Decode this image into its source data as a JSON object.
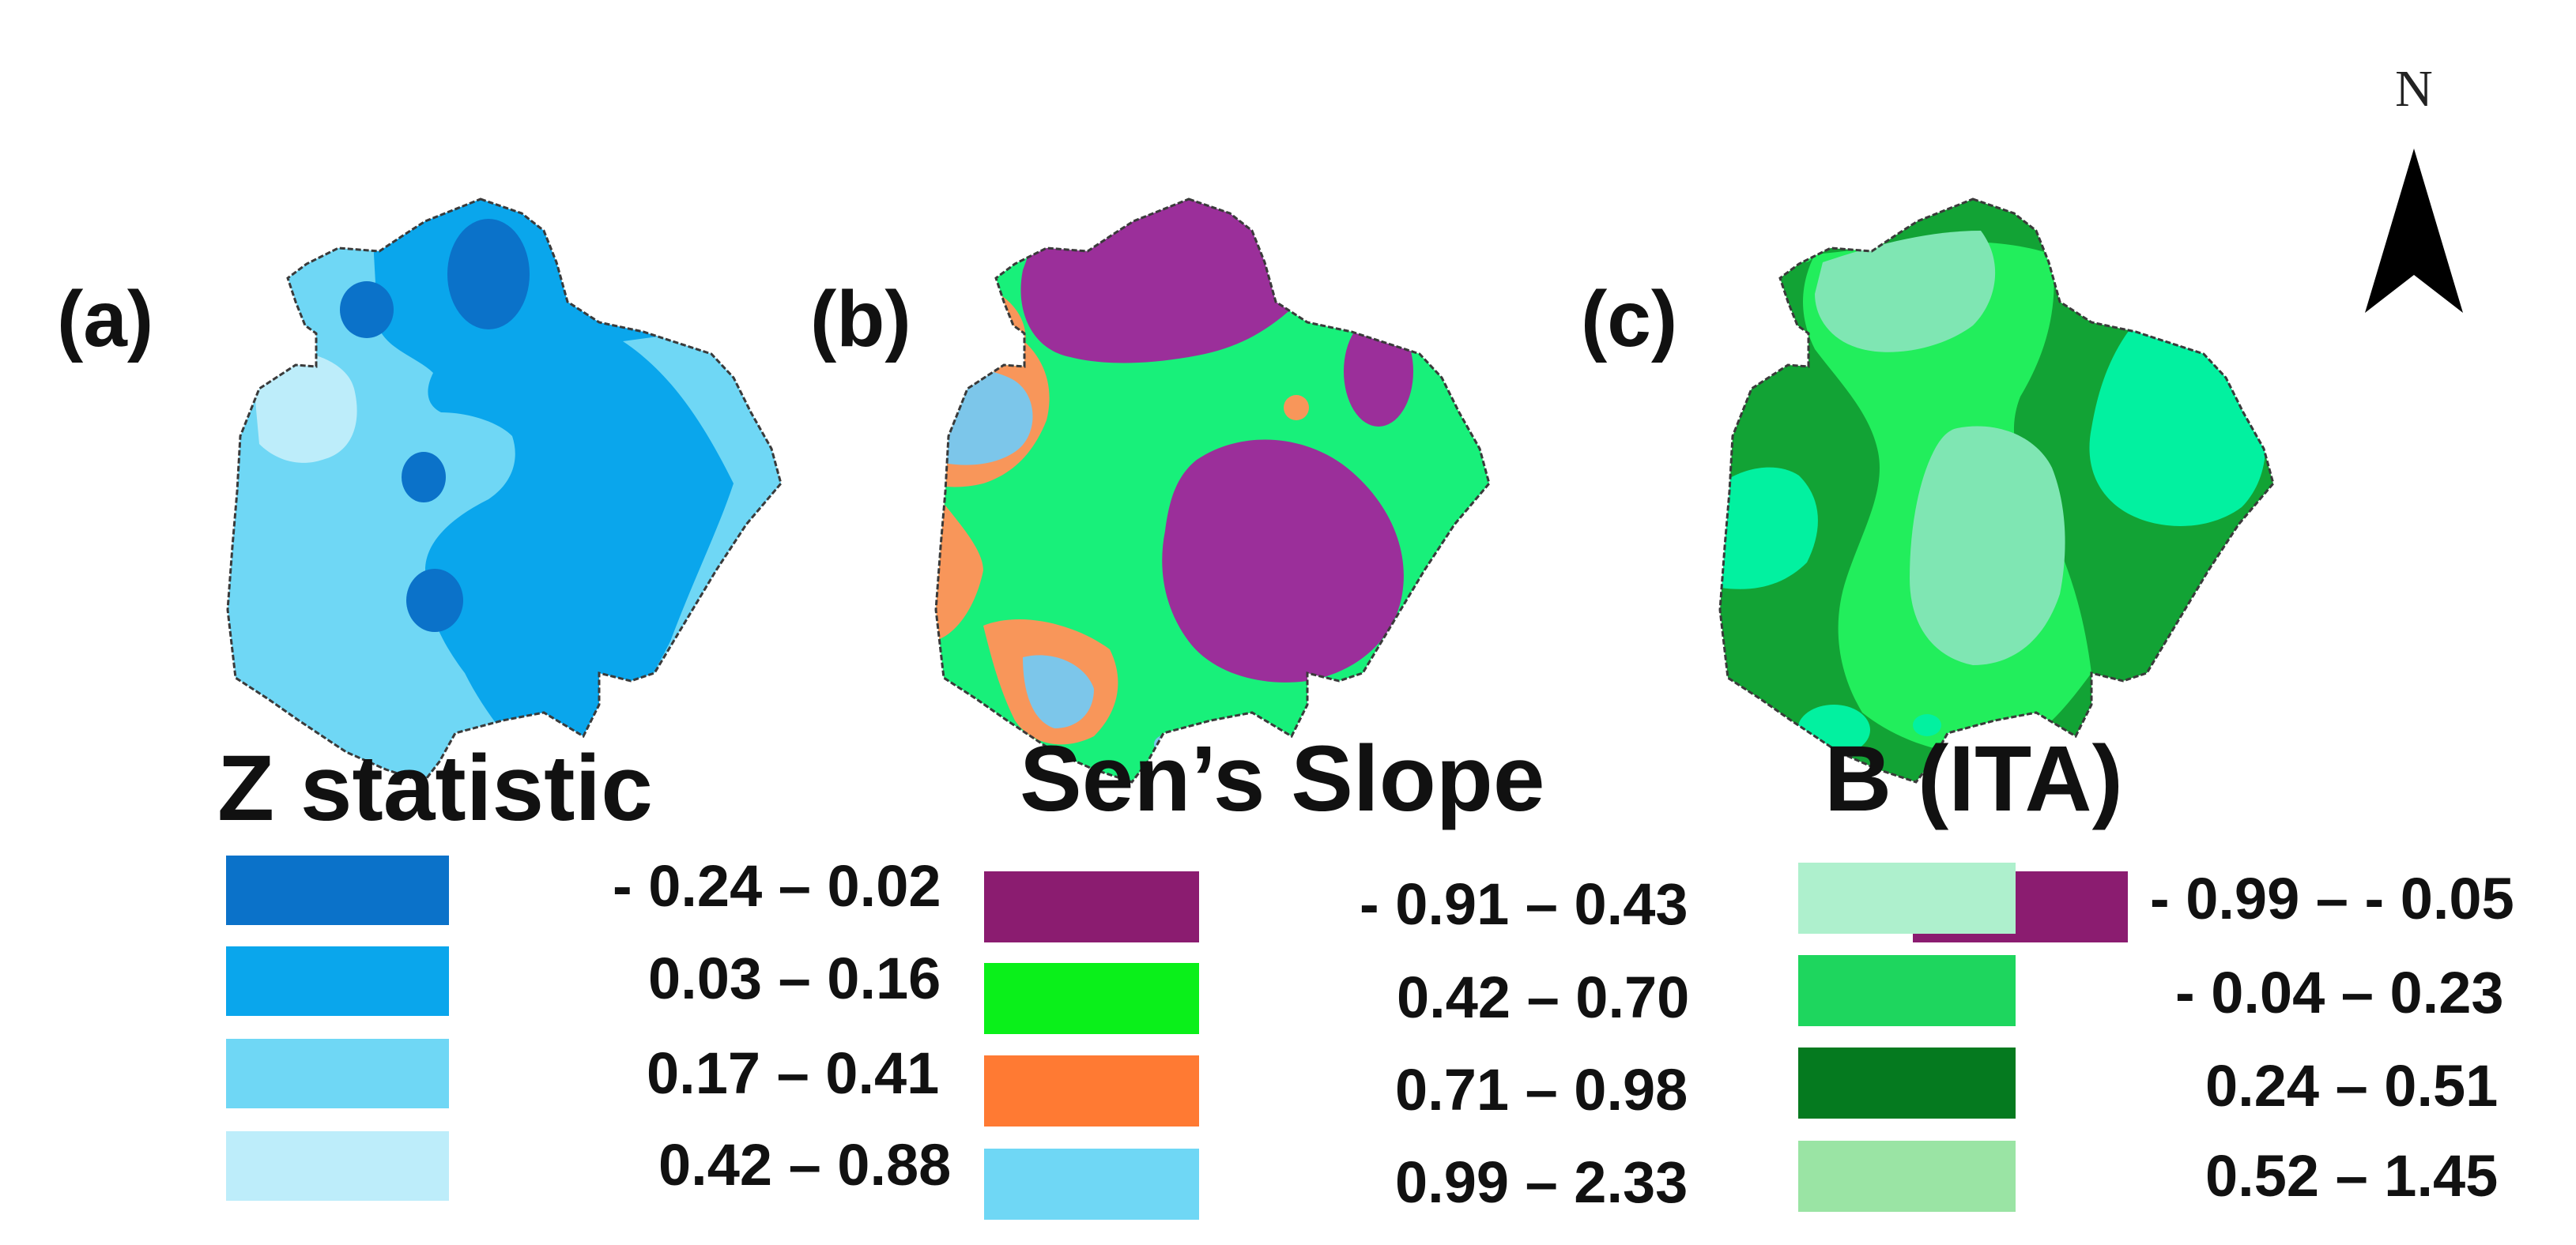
{
  "north_arrow": {
    "label": "N"
  },
  "panels": [
    {
      "id": "a",
      "label": "(a)",
      "legend": {
        "title": "Z statistic",
        "items": [
          {
            "range": "- 0.24 – 0.02",
            "color": "#0b72c9"
          },
          {
            "range": "0.03 – 0.16",
            "color": "#0aa6ec"
          },
          {
            "range": "0.17 – 0.41",
            "color": "#6fd7f5"
          },
          {
            "range": "0.42 – 0.88",
            "color": "#bdedfa"
          }
        ]
      },
      "map_colors": [
        "#0b72c9",
        "#0aa6ec",
        "#6fd7f5",
        "#bdedfa"
      ]
    },
    {
      "id": "b",
      "label": "(b)",
      "legend": {
        "title": "Sen’s Slope",
        "items": [
          {
            "range": "- 0.91 – 0.43",
            "color": "#8b1c70"
          },
          {
            "range": "0.42 – 0.70",
            "color": "#0af01a"
          },
          {
            "range": "0.71 – 0.98",
            "color": "#ff7a33"
          },
          {
            "range": "0.99 – 2.33",
            "color": "#6fd7f5"
          }
        ]
      },
      "map_colors": [
        "#9b2f9a",
        "#18f07a",
        "#f8965a",
        "#7cc6ea"
      ]
    },
    {
      "id": "c",
      "label": "(c)",
      "legend": {
        "title": "B (ITA)",
        "items": [
          {
            "range": "- 0.99 – - 0.05",
            "color": "#aef0cd"
          },
          {
            "range": "- 0.04 – 0.23",
            "color": "#1ed65e"
          },
          {
            "range": "0.24 – 0.51",
            "color": "#057a1f"
          },
          {
            "range": "0.52 – 1.45",
            "color": "#9ae4a4"
          }
        ]
      },
      "map_colors": [
        "#7fe6b3",
        "#22ee5c",
        "#12a335",
        "#02f1a0"
      ]
    }
  ]
}
